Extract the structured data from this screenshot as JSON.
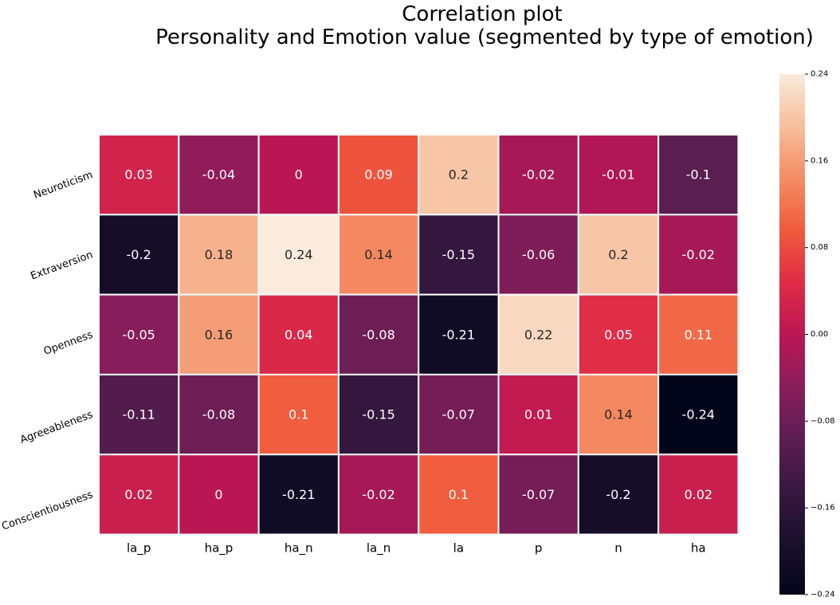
{
  "chart_data": {
    "type": "heatmap",
    "title_lines": [
      "Correlation plot",
      "Personality and Emotion value (segmented by type of emotion)"
    ],
    "rows": [
      "Neuroticism",
      "Extraversion",
      "Openness",
      "Agreeableness",
      "Conscientiousness"
    ],
    "columns": [
      "la_p",
      "ha_p",
      "ha_n",
      "la_n",
      "la",
      "p",
      "n",
      "ha"
    ],
    "values": [
      [
        0.03,
        -0.04,
        0,
        0.09,
        0.2,
        -0.02,
        -0.01,
        -0.1
      ],
      [
        -0.2,
        0.18,
        0.24,
        0.14,
        -0.15,
        -0.06,
        0.2,
        -0.02
      ],
      [
        -0.05,
        0.16,
        0.04,
        -0.08,
        -0.21,
        0.22,
        0.05,
        0.11
      ],
      [
        -0.11,
        -0.08,
        0.1,
        -0.15,
        -0.07,
        0.01,
        0.14,
        -0.24
      ],
      [
        0.02,
        0,
        -0.21,
        -0.02,
        0.1,
        -0.07,
        -0.2,
        0.02
      ]
    ],
    "cell_labels": [
      [
        "0.03",
        "-0.04",
        "0",
        "0.09",
        "0.2",
        "-0.02",
        "-0.01",
        "-0.1"
      ],
      [
        "-0.2",
        "0.18",
        "0.24",
        "0.14",
        "-0.15",
        "-0.06",
        "0.2",
        "-0.02"
      ],
      [
        "-0.05",
        "0.16",
        "0.04",
        "-0.08",
        "-0.21",
        "0.22",
        "0.05",
        "0.11"
      ],
      [
        "-0.11",
        "-0.08",
        "0.1",
        "-0.15",
        "-0.07",
        "0.01",
        "0.14",
        "-0.24"
      ],
      [
        "0.02",
        "0",
        "-0.21",
        "-0.02",
        "0.1",
        "-0.07",
        "-0.2",
        "0.02"
      ]
    ],
    "colorbar": {
      "vmin": -0.24,
      "vmax": 0.24,
      "ticks": [
        0.24,
        0.16,
        0.08,
        0.0,
        -0.08,
        -0.16,
        -0.24
      ],
      "tick_labels": [
        "0.24",
        "0.16",
        "0.08",
        "0.00",
        "−0.08",
        "−0.16",
        "−0.24"
      ]
    },
    "colormap": "rocket",
    "grid_line_color": "#ffffff",
    "annotation_light_color": "#ffffff",
    "annotation_dark_color": "#262626"
  }
}
